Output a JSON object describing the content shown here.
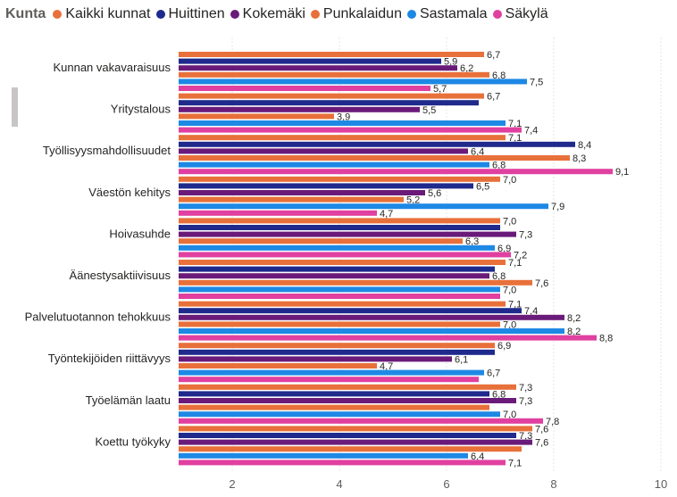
{
  "legend": {
    "title": "Kunta"
  },
  "colors": {
    "Kaikki kunnat": "#e8703a",
    "Huittinen": "#1f2a8c",
    "Kokemäki": "#6a1b7a",
    "Punkalaidun": "#e8703a",
    "Sastamala": "#1e88e5",
    "Säkylä": "#e040a0"
  },
  "chart_data": {
    "type": "bar",
    "orientation": "horizontal",
    "categories": [
      "Kunnan vakavaraisuus",
      "Yritystalous",
      "Työllisyysmahdollisuudet",
      "Väestön kehitys",
      "Hoivasuhde",
      "Äänestysaktiivisuus",
      "Palvelutuotannon tehokkuus",
      "Työntekijöiden riittävyys",
      "Työelämän laatu",
      "Koettu työkyky"
    ],
    "series": [
      {
        "name": "Kaikki kunnat",
        "values": [
          6.7,
          6.7,
          7.1,
          7.0,
          7.0,
          7.1,
          7.1,
          6.9,
          7.3,
          7.6
        ]
      },
      {
        "name": "Huittinen",
        "values": [
          5.9,
          6.6,
          8.4,
          6.5,
          7.0,
          6.9,
          7.4,
          6.9,
          6.8,
          7.3
        ]
      },
      {
        "name": "Kokemäki",
        "values": [
          6.2,
          5.5,
          6.4,
          5.6,
          7.3,
          6.8,
          8.2,
          6.1,
          7.3,
          7.6
        ]
      },
      {
        "name": "Punkalaidun",
        "values": [
          6.8,
          3.9,
          8.3,
          5.2,
          6.3,
          7.6,
          7.0,
          4.7,
          6.8,
          7.4
        ]
      },
      {
        "name": "Sastamala",
        "values": [
          7.5,
          7.1,
          6.8,
          7.9,
          6.9,
          7.0,
          8.2,
          6.7,
          7.0,
          6.4
        ]
      },
      {
        "name": "Säkylä",
        "values": [
          5.7,
          7.4,
          9.1,
          4.7,
          7.2,
          7.0,
          8.8,
          6.6,
          7.8,
          7.1
        ]
      }
    ],
    "data_labels": [
      [
        "6,7",
        "5,9",
        "6,2",
        "6,8",
        "7,5",
        "5,7"
      ],
      [
        "6,7",
        "",
        "5,5",
        "3,9",
        "7,1",
        "7,4"
      ],
      [
        "7,1",
        "8,4",
        "6,4",
        "8,3",
        "6,8",
        "9,1"
      ],
      [
        "7,0",
        "6,5",
        "5,6",
        "5,2",
        "7,9",
        "4,7"
      ],
      [
        "7,0",
        "",
        "7,3",
        "6,3",
        "6,9",
        "7,2"
      ],
      [
        "7,1",
        "",
        "6,8",
        "7,6",
        "7,0",
        ""
      ],
      [
        "7,1",
        "7,4",
        "8,2",
        "7,0",
        "8,2",
        "8,8"
      ],
      [
        "6,9",
        "",
        "6,1",
        "4,7",
        "6,7",
        ""
      ],
      [
        "7,3",
        "6,8",
        "7,3",
        "",
        "7,0",
        "7,8"
      ],
      [
        "7,6",
        "7,3",
        "7,6",
        "",
        "6,4",
        "7,1"
      ]
    ],
    "x_ticks": [
      "2",
      "4",
      "6",
      "8",
      "10"
    ],
    "xlim": [
      1,
      10
    ],
    "grid": true,
    "legend_position": "top-left",
    "title": "",
    "xlabel": "",
    "ylabel": ""
  }
}
